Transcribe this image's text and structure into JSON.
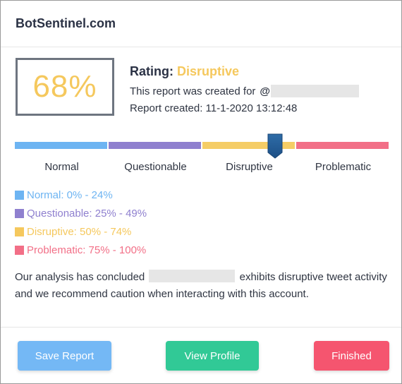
{
  "header": {
    "site_title": "BotSentinel.com"
  },
  "report": {
    "score": "68%",
    "rating_label": "Rating:",
    "rating_value": "Disruptive",
    "created_for_prefix": "This report was created for",
    "at_symbol": "@",
    "created_date": "Report created: 11-1-2020 13:12:48"
  },
  "scale": {
    "labels": [
      "Normal",
      "Questionable",
      "Disruptive",
      "Problematic"
    ],
    "colors": [
      "#6db4f2",
      "#8f80cf",
      "#f5cd66",
      "#f26f87"
    ],
    "marker_score_percent": 68
  },
  "legend": [
    {
      "text": "Normal: 0% - 24%",
      "color": "#6db4f2"
    },
    {
      "text": "Questionable: 25% - 49%",
      "color": "#8f80cf"
    },
    {
      "text": "Disruptive: 50% - 74%",
      "color": "#f5c85d"
    },
    {
      "text": "Problematic: 75% - 100%",
      "color": "#f26f87"
    }
  ],
  "analysis": {
    "prefix": "Our analysis has concluded",
    "suffix": "exhibits disruptive tweet activity and we recommend caution when interacting with this account."
  },
  "footer": {
    "save_label": "Save Report",
    "profile_label": "View Profile",
    "finished_label": "Finished"
  }
}
